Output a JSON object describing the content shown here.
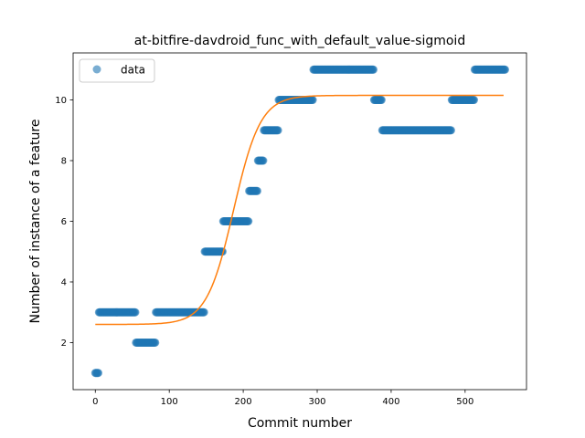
{
  "chart_data": {
    "type": "scatter",
    "title": "at-bitfire-davdroid_func_with_default_value-sigmoid",
    "xlabel": "Commit number",
    "ylabel": "Number of instance of a feature",
    "xlim": [
      -30,
      583
    ],
    "ylim": [
      0.45,
      11.55
    ],
    "xticks": [
      0,
      100,
      200,
      300,
      400,
      500
    ],
    "yticks": [
      2,
      4,
      6,
      8,
      10
    ],
    "grid": false,
    "legend": {
      "position": "top-left",
      "entries": [
        "data"
      ]
    },
    "series": [
      {
        "name": "data",
        "kind": "scatter",
        "color": "#1f77b4",
        "segments": [
          {
            "x_start": 0,
            "x_end": 5,
            "y": 1
          },
          {
            "x_start": 5,
            "x_end": 55,
            "y": 3
          },
          {
            "x_start": 55,
            "x_end": 82,
            "y": 2
          },
          {
            "x_start": 82,
            "x_end": 148,
            "y": 3
          },
          {
            "x_start": 148,
            "x_end": 173,
            "y": 5
          },
          {
            "x_start": 173,
            "x_end": 208,
            "y": 6
          },
          {
            "x_start": 208,
            "x_end": 220,
            "y": 7
          },
          {
            "x_start": 220,
            "x_end": 228,
            "y": 8
          },
          {
            "x_start": 228,
            "x_end": 248,
            "y": 9
          },
          {
            "x_start": 248,
            "x_end": 295,
            "y": 10
          },
          {
            "x_start": 295,
            "x_end": 377,
            "y": 11
          },
          {
            "x_start": 377,
            "x_end": 388,
            "y": 10
          },
          {
            "x_start": 388,
            "x_end": 482,
            "y": 9
          },
          {
            "x_start": 482,
            "x_end": 513,
            "y": 10
          },
          {
            "x_start": 513,
            "x_end": 555,
            "y": 11
          }
        ]
      },
      {
        "name": "",
        "kind": "line",
        "color": "#ff7f0e",
        "function": "sigmoid",
        "params": {
          "bottom": 2.6,
          "top": 10.15,
          "midpoint": 187,
          "rate": 0.055
        },
        "x_range": [
          0,
          553
        ]
      }
    ]
  }
}
